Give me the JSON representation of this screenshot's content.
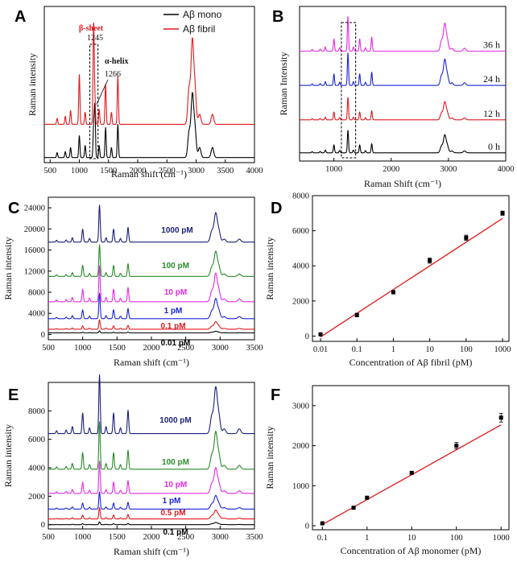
{
  "chart_data": [
    {
      "panel": "A",
      "type": "line",
      "xlabel": "Raman shift (cm⁻¹)",
      "ylabel": "Raman intensity",
      "xlim": [
        400,
        4000
      ],
      "xticks": [
        500,
        1000,
        1500,
        2000,
        2500,
        3000,
        3500,
        4000
      ],
      "legend": {
        "placement": "top-right",
        "entries": [
          {
            "name": "Aβ mono",
            "color": "#000000"
          },
          {
            "name": "Aβ fibril",
            "color": "#e0191c"
          }
        ]
      },
      "series": [
        {
          "name": "Aβ mono",
          "color": "#000000",
          "offset": 0.05,
          "peaks": [
            [
              620,
              0.05
            ],
            [
              760,
              0.06
            ],
            [
              850,
              0.1
            ],
            [
              1000,
              0.22
            ],
            [
              1100,
              0.12
            ],
            [
              1245,
              0.3
            ],
            [
              1266,
              0.5
            ],
            [
              1340,
              0.12
            ],
            [
              1450,
              0.3
            ],
            [
              1550,
              0.1
            ],
            [
              1660,
              0.33
            ],
            [
              2880,
              0.25
            ],
            [
              2935,
              0.6
            ],
            [
              2980,
              0.28
            ],
            [
              3060,
              0.1
            ],
            [
              3280,
              0.1
            ]
          ]
        },
        {
          "name": "Aβ fibril",
          "color": "#e0191c",
          "offset": 0.38,
          "peaks": [
            [
              620,
              0.06
            ],
            [
              760,
              0.08
            ],
            [
              850,
              0.14
            ],
            [
              1000,
              0.5
            ],
            [
              1100,
              0.12
            ],
            [
              1245,
              1.0
            ],
            [
              1266,
              0.25
            ],
            [
              1340,
              0.15
            ],
            [
              1450,
              0.4
            ],
            [
              1550,
              0.12
            ],
            [
              1660,
              0.48
            ],
            [
              2880,
              0.35
            ],
            [
              2935,
              0.8
            ],
            [
              2980,
              0.35
            ],
            [
              3060,
              0.1
            ],
            [
              3280,
              0.1
            ]
          ]
        }
      ],
      "annotations": [
        {
          "text": "β-sheet",
          "color": "#e0191c"
        },
        {
          "text": "1245"
        },
        {
          "text": "α-helix"
        },
        {
          "text": "1266"
        }
      ]
    },
    {
      "panel": "B",
      "type": "line",
      "xlabel": "Raman Shift (cm⁻¹)",
      "ylabel": "Raman Intensity",
      "xlim": [
        400,
        4000
      ],
      "xticks": [
        1000,
        2000,
        3000,
        4000
      ],
      "series": [
        {
          "name": "0 h",
          "color": "#000000",
          "offset": 0.06,
          "scale": 0.55
        },
        {
          "name": "12 h",
          "color": "#e0191c",
          "offset": 0.3,
          "scale": 0.55
        },
        {
          "name": "24 h",
          "color": "#1a23d6",
          "offset": 0.55,
          "scale": 0.8
        },
        {
          "name": "36 h",
          "color": "#e22be2",
          "offset": 0.8,
          "scale": 0.85
        }
      ]
    },
    {
      "panel": "C",
      "type": "line",
      "xlabel": "Raman shift (cm⁻¹)",
      "ylabel": "Raman intensity",
      "xlim": [
        500,
        3500
      ],
      "ylim": [
        -1000,
        26000
      ],
      "xticks": [
        500,
        1000,
        1500,
        2000,
        2500,
        3000,
        3500
      ],
      "yticks": [
        0,
        4000,
        8000,
        12000,
        16000,
        20000,
        24000
      ],
      "series": [
        {
          "name": "0.01 pM",
          "color": "#000000",
          "baseline": 300,
          "peak1245": 700
        },
        {
          "name": "0.1 pM",
          "color": "#e0191c",
          "baseline": 1000,
          "peak1245": 2800
        },
        {
          "name": "1 pM",
          "color": "#1a23d6",
          "baseline": 3000,
          "peak1245": 7800
        },
        {
          "name": "10 pM",
          "color": "#e22be2",
          "baseline": 6200,
          "peak1245": 13000
        },
        {
          "name": "100 pM",
          "color": "#2a8a2a",
          "baseline": 11000,
          "peak1245": 17000
        },
        {
          "name": "1000 pM",
          "color": "#1a1f7a",
          "baseline": 17500,
          "peak1245": 24500
        }
      ]
    },
    {
      "panel": "D",
      "type": "scatter",
      "xlabel": "Concentration of Aβ fibril (pM)",
      "ylabel": "Raman intensity",
      "xscale": "log",
      "xlim": [
        0.006,
        1500
      ],
      "ylim": [
        -300,
        8000
      ],
      "xticks": [
        0.01,
        0.1,
        1,
        10,
        100,
        1000
      ],
      "xtick_labels": [
        "0.01",
        "0.1",
        "1",
        "10",
        "100",
        "1000"
      ],
      "yticks": [
        0,
        2000,
        4000,
        6000,
        8000
      ],
      "x": [
        0.01,
        0.1,
        1,
        10,
        100,
        1000
      ],
      "y": [
        100,
        1200,
        2500,
        4300,
        5600,
        7000
      ],
      "yerr": [
        60,
        100,
        100,
        150,
        150,
        120
      ],
      "fit": {
        "x": [
          0.01,
          1000
        ],
        "y": [
          -50,
          6700
        ],
        "color": "#e0191c"
      }
    },
    {
      "panel": "E",
      "type": "line",
      "xlabel": "Raman shift (cm⁻¹)",
      "ylabel": "Raman intensity",
      "xlim": [
        500,
        3500
      ],
      "ylim": [
        -300,
        10000
      ],
      "xticks": [
        500,
        1000,
        1500,
        2000,
        2500,
        3000,
        3500
      ],
      "yticks": [
        0,
        2000,
        4000,
        6000,
        8000
      ],
      "series": [
        {
          "name": "0.1 pM",
          "color": "#000000",
          "baseline": 0,
          "peak2935": 150
        },
        {
          "name": "0.5 pM",
          "color": "#e0191c",
          "baseline": 400,
          "peak2935": 1000
        },
        {
          "name": "1 pM",
          "color": "#1a23d6",
          "baseline": 1100,
          "peak2935": 2000
        },
        {
          "name": "10 pM",
          "color": "#e22be2",
          "baseline": 2200,
          "peak2935": 3900
        },
        {
          "name": "100 pM",
          "color": "#2a8a2a",
          "baseline": 3900,
          "peak2935": 6400
        },
        {
          "name": "1000 pM",
          "color": "#1a1f7a",
          "baseline": 6400,
          "peak2935": 9500
        }
      ]
    },
    {
      "panel": "F",
      "type": "scatter",
      "xlabel": "Concentration of Aβ monomer (pM)",
      "ylabel": "Raman intensity",
      "xscale": "log",
      "xlim": [
        0.06,
        1500
      ],
      "ylim": [
        -100,
        3500
      ],
      "xticks": [
        0.1,
        1,
        10,
        100,
        1000
      ],
      "xtick_labels": [
        "0.1",
        "1",
        "10",
        "100",
        "1000"
      ],
      "yticks": [
        0,
        1000,
        2000,
        3000
      ],
      "x": [
        0.1,
        0.5,
        1,
        10,
        100,
        1000
      ],
      "y": [
        60,
        450,
        700,
        1320,
        2000,
        2700
      ],
      "yerr": [
        20,
        30,
        30,
        30,
        80,
        110
      ],
      "fit": {
        "x": [
          0.1,
          1000
        ],
        "y": [
          30,
          2520
        ],
        "color": "#e0191c"
      }
    }
  ]
}
